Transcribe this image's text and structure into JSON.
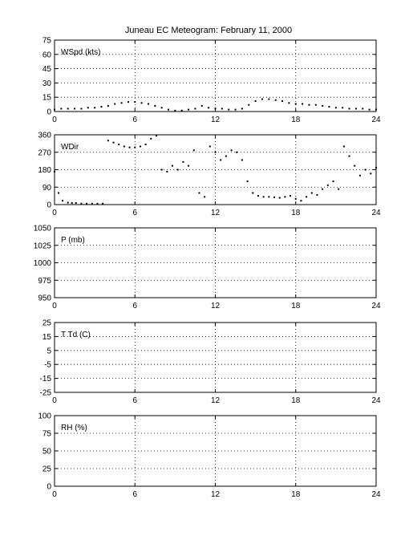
{
  "title": "Juneau EC Meteogram:  February 11, 2000",
  "chart_data": [
    {
      "id": "wspd",
      "type": "scatter",
      "ylabel_inset": "WSpd (kts)",
      "xlim": [
        0,
        24
      ],
      "ylim": [
        0,
        75
      ],
      "xticks": [
        "0",
        "6",
        "12",
        "18",
        "24"
      ],
      "yticks": [
        "0",
        "15",
        "30",
        "45",
        "60",
        "75"
      ],
      "grid": "dotted",
      "x": [
        0,
        0.5,
        1,
        1.5,
        2,
        2.5,
        3,
        3.5,
        4,
        4.5,
        5,
        5.5,
        6,
        6.5,
        7,
        7.5,
        8,
        8.5,
        9,
        9.5,
        10,
        10.5,
        11,
        11.5,
        12,
        12.5,
        13,
        13.5,
        14,
        14.5,
        15,
        15.5,
        16,
        16.5,
        17,
        17.5,
        18,
        18.5,
        19,
        19.5,
        20,
        20.5,
        21,
        21.5,
        22,
        22.5,
        23,
        23.5,
        24
      ],
      "y": [
        2,
        3,
        3,
        3,
        3,
        4,
        4,
        5,
        6,
        8,
        9,
        10,
        10,
        9,
        8,
        6,
        4,
        2,
        1,
        1,
        2,
        3,
        6,
        4,
        3,
        3,
        2,
        2,
        3,
        7,
        11,
        13,
        13,
        12,
        11,
        9,
        8,
        8,
        7,
        7,
        6,
        5,
        4,
        4,
        3,
        3,
        3,
        2,
        2
      ]
    },
    {
      "id": "wdir",
      "type": "scatter",
      "ylabel_inset": "WDir",
      "xlim": [
        0,
        24
      ],
      "ylim": [
        0,
        360
      ],
      "xticks": [
        "0",
        "6",
        "12",
        "18",
        "24"
      ],
      "yticks": [
        "0",
        "90",
        "180",
        "270",
        "360"
      ],
      "grid": "dotted",
      "x": [
        0,
        0.3,
        0.6,
        1,
        1.3,
        1.6,
        2,
        2.4,
        2.8,
        3.2,
        3.6,
        4,
        4.4,
        4.8,
        5.2,
        5.6,
        6,
        6.4,
        6.8,
        7.2,
        7.6,
        8,
        8.4,
        8.8,
        9.2,
        9.6,
        10,
        10.4,
        10.8,
        11.2,
        11.6,
        12,
        12.4,
        12.8,
        13.2,
        13.6,
        14,
        14.4,
        14.8,
        15.2,
        15.6,
        16,
        16.4,
        16.8,
        17.2,
        17.6,
        18,
        18.4,
        18.8,
        19.2,
        19.6,
        20,
        20.4,
        20.8,
        21.2,
        21.6,
        22,
        22.4,
        22.8,
        23.2,
        23.6,
        24
      ],
      "y": [
        170,
        60,
        20,
        10,
        8,
        8,
        5,
        5,
        5,
        5,
        5,
        330,
        320,
        310,
        300,
        295,
        295,
        300,
        310,
        340,
        355,
        180,
        170,
        200,
        180,
        220,
        200,
        280,
        60,
        40,
        300,
        270,
        230,
        250,
        280,
        270,
        230,
        120,
        60,
        45,
        40,
        40,
        38,
        35,
        40,
        45,
        30,
        20,
        40,
        60,
        50,
        80,
        100,
        120,
        80,
        300,
        250,
        200,
        150,
        180,
        160,
        190
      ]
    },
    {
      "id": "pressure",
      "type": "line",
      "ylabel_inset": "P (mb)",
      "xlim": [
        0,
        24
      ],
      "ylim": [
        950,
        1050
      ],
      "xticks": [
        "0",
        "6",
        "12",
        "18",
        "24"
      ],
      "yticks": [
        "950",
        "975",
        "1000",
        "1025",
        "1050"
      ],
      "grid": "dotted",
      "x": [],
      "y": []
    },
    {
      "id": "temp",
      "type": "line",
      "ylabel_inset": "T Td (C)",
      "xlim": [
        0,
        24
      ],
      "ylim": [
        -25,
        25
      ],
      "xticks": [
        "0",
        "6",
        "12",
        "18",
        "24"
      ],
      "yticks": [
        "-25",
        "-15",
        "-5",
        "5",
        "15",
        "25"
      ],
      "grid": "dotted",
      "x": [],
      "y": []
    },
    {
      "id": "rh",
      "type": "line",
      "ylabel_inset": "RH (%)",
      "xlim": [
        0,
        24
      ],
      "ylim": [
        0,
        100
      ],
      "xticks": [
        "0",
        "6",
        "12",
        "18",
        "24"
      ],
      "yticks": [
        "0",
        "25",
        "50",
        "75",
        "100"
      ],
      "grid": "dotted",
      "x": [],
      "y": []
    }
  ]
}
